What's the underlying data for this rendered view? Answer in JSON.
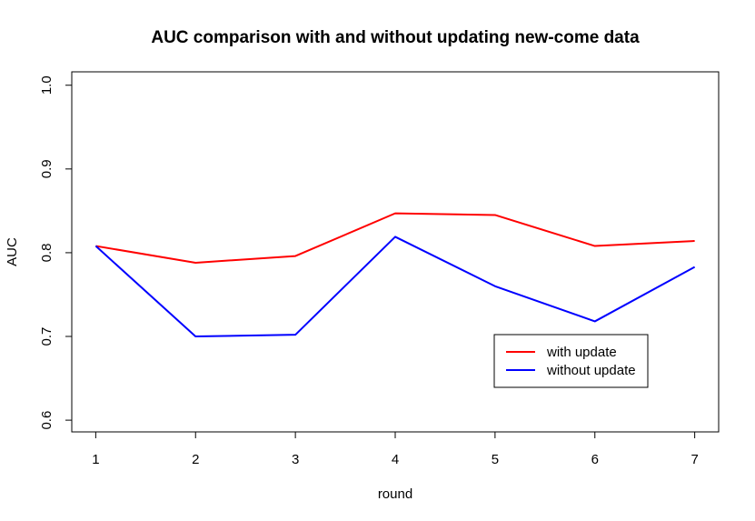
{
  "chart_data": {
    "type": "line",
    "title": "AUC comparison with and without updating new-come data",
    "xlabel": "round",
    "ylabel": "AUC",
    "x": [
      1,
      2,
      3,
      4,
      5,
      6,
      7
    ],
    "xticks": [
      "1",
      "2",
      "3",
      "4",
      "5",
      "6",
      "7"
    ],
    "yticks": [
      "0.6",
      "0.7",
      "0.8",
      "0.9",
      "1.0"
    ],
    "ytick_values": [
      0.6,
      0.7,
      0.8,
      0.9,
      1.0
    ],
    "xlim": [
      0.76,
      7.24
    ],
    "ylim": [
      0.586,
      1.016
    ],
    "grid": false,
    "legend_position": "bottom-right",
    "series": [
      {
        "name": "with update",
        "color": "#ff0000",
        "values": [
          0.808,
          0.788,
          0.796,
          0.847,
          0.845,
          0.808,
          0.814
        ]
      },
      {
        "name": "without update",
        "color": "#0000ff",
        "values": [
          0.808,
          0.7,
          0.702,
          0.819,
          0.76,
          0.718,
          0.783
        ]
      }
    ]
  }
}
